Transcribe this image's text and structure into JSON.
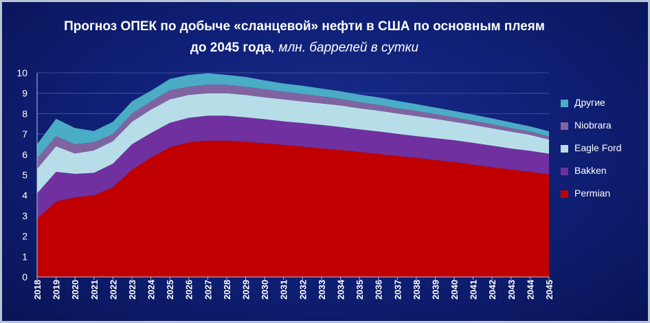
{
  "title": {
    "main": "Прогноз ОПЕК по добыче «сланцевой» нефти в США по основным плеям до 2045 года",
    "unit": ", млн. баррелей в сутки"
  },
  "colors": {
    "Permian": "#c00000",
    "Bakken": "#7030a0",
    "Eagle Ford": "#b7dee8",
    "Niobrara": "#8064a2",
    "Другие": "#4bacc6"
  },
  "chart_data": {
    "type": "area",
    "stacked": true,
    "title": "Прогноз ОПЕК по добыче «сланцевой» нефти в США по основным плеям до 2045 года, млн. баррелей в сутки",
    "xlabel": "",
    "ylabel": "",
    "ylim": [
      0,
      10
    ],
    "yticks": [
      0,
      1,
      2,
      3,
      4,
      5,
      6,
      7,
      8,
      9,
      10
    ],
    "grid": true,
    "legend": "right",
    "categories": [
      "2018",
      "2019",
      "2020",
      "2021",
      "2022",
      "2023",
      "2024",
      "2025",
      "2026",
      "2027",
      "2028",
      "2029",
      "2030",
      "2031",
      "2032",
      "2033",
      "2034",
      "2035",
      "2036",
      "2037",
      "2038",
      "2039",
      "2040",
      "2041",
      "2042",
      "2043",
      "2044",
      "2045"
    ],
    "series": [
      {
        "name": "Permian",
        "values": [
          2.85,
          3.7,
          3.9,
          4.0,
          4.4,
          5.25,
          5.85,
          6.35,
          6.6,
          6.68,
          6.68,
          6.62,
          6.55,
          6.47,
          6.39,
          6.3,
          6.22,
          6.13,
          6.03,
          5.93,
          5.83,
          5.73,
          5.63,
          5.5,
          5.38,
          5.26,
          5.15,
          5.02
        ]
      },
      {
        "name": "Bakken",
        "values": [
          1.25,
          1.45,
          1.15,
          1.1,
          1.15,
          1.25,
          1.2,
          1.2,
          1.2,
          1.22,
          1.22,
          1.2,
          1.18,
          1.15,
          1.15,
          1.15,
          1.13,
          1.1,
          1.1,
          1.08,
          1.07,
          1.07,
          1.07,
          1.07,
          1.05,
          1.03,
          1.03,
          1.02
        ]
      },
      {
        "name": "Eagle Ford",
        "values": [
          1.2,
          1.25,
          1.0,
          1.1,
          1.1,
          1.1,
          1.15,
          1.15,
          1.12,
          1.1,
          1.1,
          1.1,
          1.07,
          1.08,
          1.06,
          1.05,
          1.05,
          1.03,
          1.02,
          1.0,
          0.98,
          0.95,
          0.9,
          0.88,
          0.85,
          0.83,
          0.78,
          0.69
        ]
      },
      {
        "name": "Niobrara",
        "values": [
          0.5,
          0.5,
          0.45,
          0.4,
          0.35,
          0.4,
          0.4,
          0.45,
          0.4,
          0.43,
          0.42,
          0.4,
          0.4,
          0.38,
          0.37,
          0.35,
          0.33,
          0.3,
          0.28,
          0.25,
          0.25,
          0.23,
          0.22,
          0.2,
          0.2,
          0.18,
          0.17,
          0.16
        ]
      },
      {
        "name": "Другие",
        "values": [
          0.7,
          0.85,
          0.8,
          0.55,
          0.6,
          0.6,
          0.52,
          0.55,
          0.58,
          0.55,
          0.48,
          0.48,
          0.43,
          0.4,
          0.4,
          0.38,
          0.37,
          0.37,
          0.37,
          0.37,
          0.34,
          0.32,
          0.31,
          0.3,
          0.29,
          0.27,
          0.25,
          0.25
        ]
      }
    ]
  }
}
